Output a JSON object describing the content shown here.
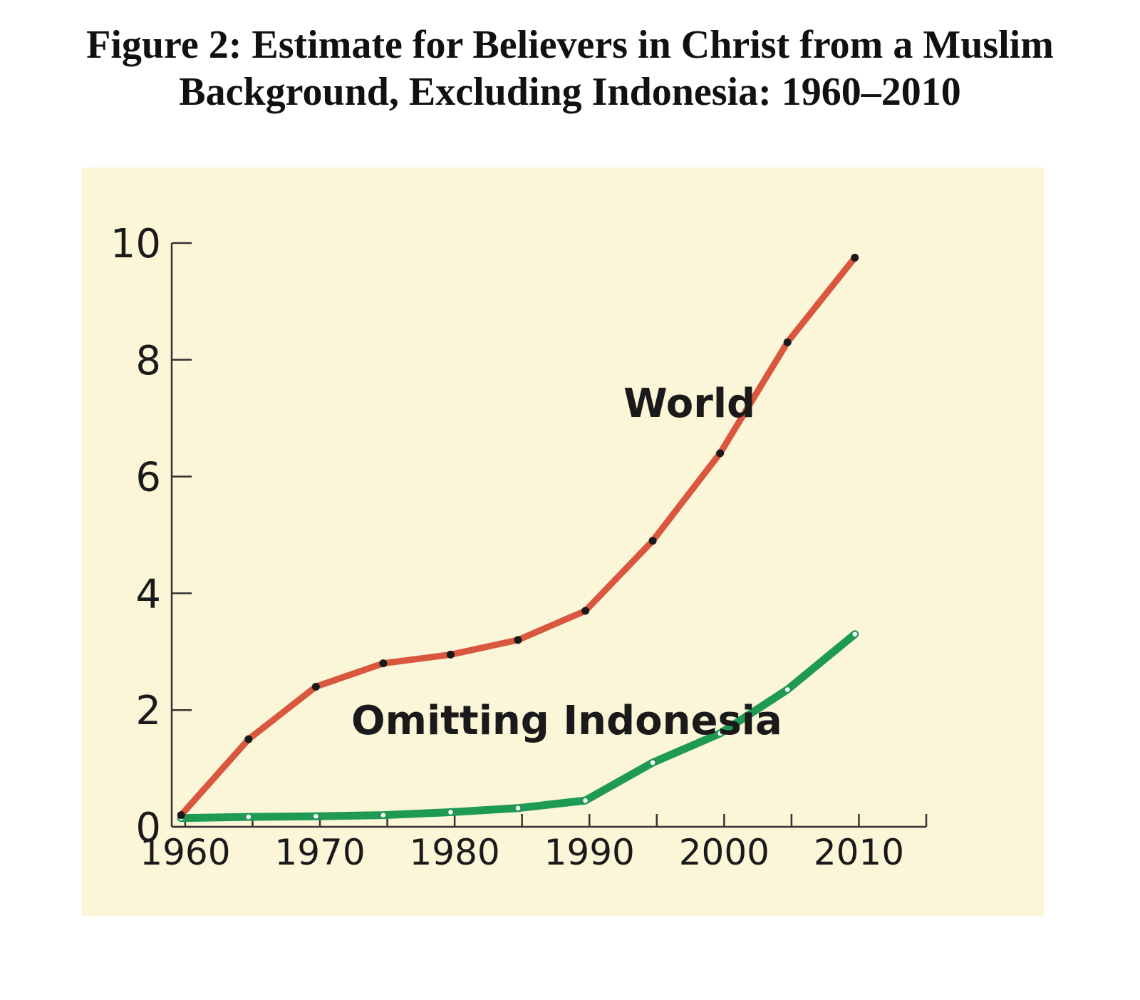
{
  "title_lines": [
    "Figure 2: Estimate for Believers in Christ from a Muslim",
    "Background, Excluding Indonesia: 1960–2010"
  ],
  "colors": {
    "panel_background": "#fcf6d8",
    "world_line": "#d9573f",
    "omitting_line": "#1f9a55",
    "axis": "#333333",
    "marker": "#1a1a1a",
    "marker_hollow": "#ffffff"
  },
  "chart_data": {
    "type": "line",
    "title": "Figure 2: Estimate for Believers in Christ from a Muslim Background, Excluding Indonesia: 1960–2010",
    "xlabel": "",
    "ylabel": "",
    "xlim": [
      1959,
      2015
    ],
    "ylim": [
      0,
      10
    ],
    "x_ticks": [
      1960,
      1965,
      1970,
      1975,
      1980,
      1985,
      1990,
      1995,
      2000,
      2005,
      2010,
      2015
    ],
    "x_tick_labels": [
      "1960",
      "1970",
      "1980",
      "1990",
      "2000",
      "2010"
    ],
    "x_tick_label_values": [
      1960,
      1970,
      1980,
      1990,
      2000,
      2010
    ],
    "y_ticks": [
      0,
      2,
      4,
      6,
      8,
      10
    ],
    "y_tick_labels": [
      "0",
      "2",
      "4",
      "6",
      "8",
      "10"
    ],
    "grid": false,
    "legend": "inline labels",
    "series": [
      {
        "name": "World",
        "x": [
          1959.7,
          1964.7,
          1969.7,
          1974.7,
          1979.7,
          1984.7,
          1989.7,
          1994.7,
          1999.7,
          2004.7,
          2009.7
        ],
        "values": [
          0.2,
          1.5,
          2.4,
          2.8,
          2.95,
          3.2,
          3.7,
          4.9,
          6.4,
          8.3,
          9.75
        ]
      },
      {
        "name": "Omitting Indonesia",
        "x": [
          1959.7,
          1964.7,
          1969.7,
          1974.7,
          1979.7,
          1984.7,
          1989.7,
          1994.7,
          1999.7,
          2004.7,
          2009.7
        ],
        "values": [
          0.15,
          0.17,
          0.18,
          0.2,
          0.25,
          0.32,
          0.45,
          1.1,
          1.6,
          2.35,
          3.3
        ]
      }
    ]
  }
}
